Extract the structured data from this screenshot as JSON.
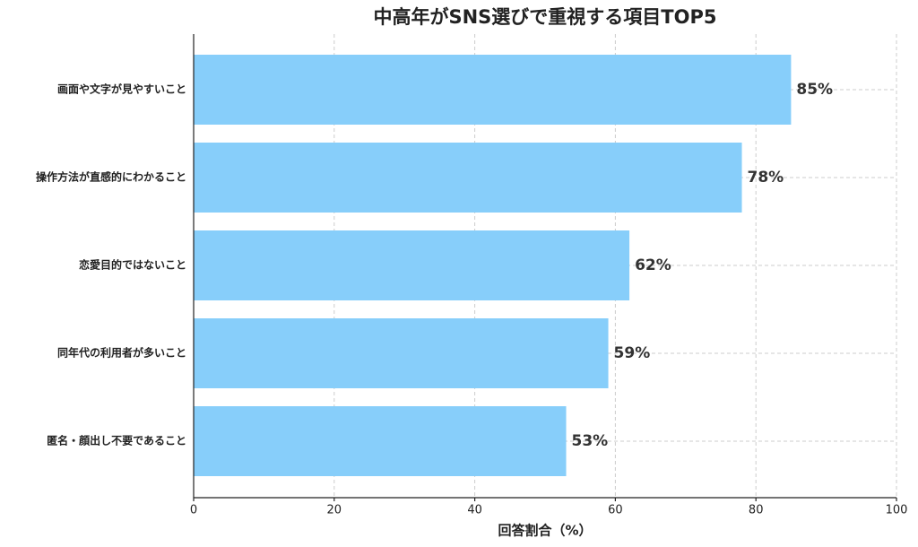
{
  "chart_data": {
    "type": "barh",
    "title": "中高年がSNS選びで重視する項目TOP5",
    "x_label": "回答割合（%）",
    "categories": [
      "画面や文字が見やすいこと",
      "操作方法が直感的にわかること",
      "恋愛目的ではないこと",
      "同年代の利用者が多いこと",
      "匿名・顔出し不要であること"
    ],
    "values": [
      85,
      78,
      62,
      59,
      53
    ],
    "value_labels": [
      "85%",
      "78%",
      "62%",
      "59%",
      "53%"
    ],
    "color": "#87cefa",
    "xlim": [
      0,
      100
    ],
    "xticks": [
      0,
      20,
      40,
      60,
      80,
      100
    ],
    "grid": true
  }
}
